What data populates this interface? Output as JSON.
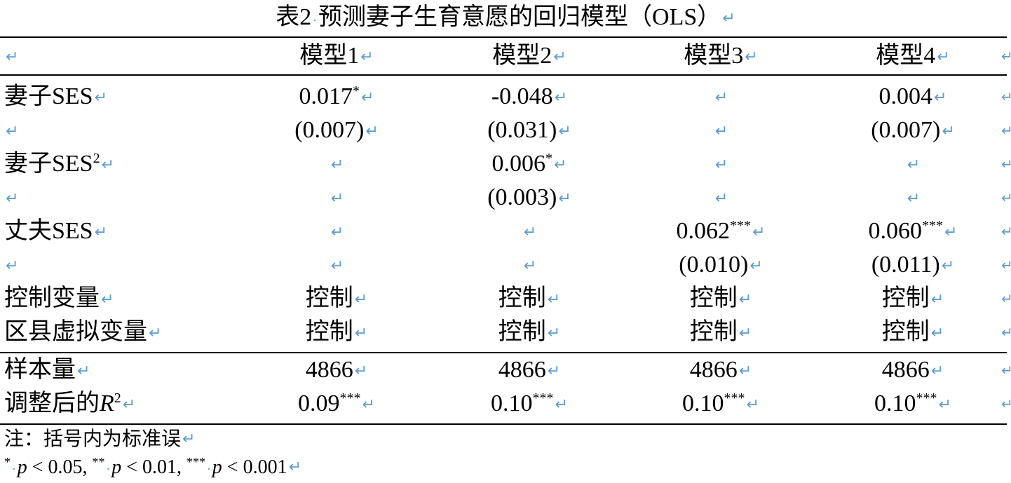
{
  "title": "表2· 预测妻子生育意愿的回归模型（OLS）",
  "return_mark": "↵",
  "columns": [
    "",
    "模型1",
    "模型2",
    "模型3",
    "模型4"
  ],
  "rows": [
    {
      "label": "妻子SES",
      "label_sup": "",
      "cells": [
        {
          "v": "0.017",
          "sig": "*"
        },
        {
          "v": "-0.048",
          "sig": ""
        },
        {
          "v": "",
          "sig": ""
        },
        {
          "v": "0.004",
          "sig": ""
        }
      ]
    },
    {
      "label": "",
      "label_sup": "",
      "cells": [
        {
          "v": "(0.007)",
          "sig": ""
        },
        {
          "v": "(0.031)",
          "sig": ""
        },
        {
          "v": "",
          "sig": ""
        },
        {
          "v": "(0.007)",
          "sig": ""
        }
      ]
    },
    {
      "label": "妻子SES",
      "label_sup": "2",
      "cells": [
        {
          "v": "",
          "sig": ""
        },
        {
          "v": "0.006",
          "sig": "*"
        },
        {
          "v": "",
          "sig": ""
        },
        {
          "v": "",
          "sig": ""
        }
      ]
    },
    {
      "label": "",
      "label_sup": "",
      "cells": [
        {
          "v": "",
          "sig": ""
        },
        {
          "v": "(0.003)",
          "sig": ""
        },
        {
          "v": "",
          "sig": ""
        },
        {
          "v": "",
          "sig": ""
        }
      ]
    },
    {
      "label": "丈夫SES",
      "label_sup": "",
      "cells": [
        {
          "v": "",
          "sig": ""
        },
        {
          "v": "",
          "sig": ""
        },
        {
          "v": "0.062",
          "sig": "***"
        },
        {
          "v": "0.060",
          "sig": "***"
        }
      ]
    },
    {
      "label": "",
      "label_sup": "",
      "cells": [
        {
          "v": "",
          "sig": ""
        },
        {
          "v": "",
          "sig": ""
        },
        {
          "v": "(0.010)",
          "sig": ""
        },
        {
          "v": "(0.011)",
          "sig": ""
        }
      ]
    },
    {
      "label": "控制变量",
      "label_sup": "",
      "cells": [
        {
          "v": "控制",
          "sig": ""
        },
        {
          "v": "控制",
          "sig": ""
        },
        {
          "v": "控制",
          "sig": ""
        },
        {
          "v": "控制",
          "sig": ""
        }
      ]
    },
    {
      "label": "区县虚拟变量",
      "label_sup": "",
      "cells": [
        {
          "v": "控制",
          "sig": ""
        },
        {
          "v": "控制",
          "sig": ""
        },
        {
          "v": "控制",
          "sig": ""
        },
        {
          "v": "控制",
          "sig": ""
        }
      ]
    },
    {
      "label": "样本量",
      "label_sup": "",
      "cells": [
        {
          "v": "4866",
          "sig": ""
        },
        {
          "v": "4866",
          "sig": ""
        },
        {
          "v": "4866",
          "sig": ""
        },
        {
          "v": "4866",
          "sig": ""
        }
      ]
    },
    {
      "label": "调整后的",
      "label_italic": "R",
      "label_sup": "2",
      "cells": [
        {
          "v": "0.09",
          "sig": "***"
        },
        {
          "v": "0.10",
          "sig": "***"
        },
        {
          "v": "0.10",
          "sig": "***"
        },
        {
          "v": "0.10",
          "sig": "***"
        }
      ]
    }
  ],
  "notes": {
    "line1": "注：括号内为标准误",
    "sig_levels": [
      {
        "stars": "*",
        "p": "p",
        "cmp": "< 0.05,"
      },
      {
        "stars": "**",
        "p": "p",
        "cmp": "< 0.01,"
      },
      {
        "stars": "***",
        "p": "p",
        "cmp": "< 0.001"
      }
    ]
  }
}
